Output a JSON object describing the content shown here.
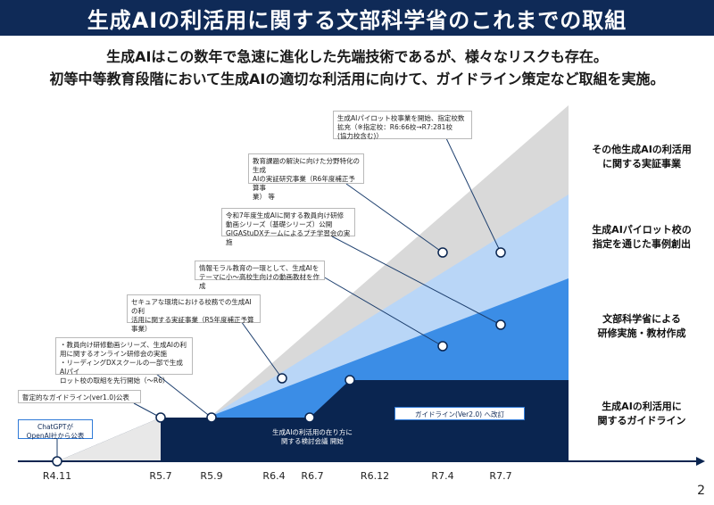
{
  "header": {
    "title": "生成AIの利活用に関する文部科学省のこれまでの取組"
  },
  "subtitle": {
    "line1": "生成AIはこの数年で急速に進化した先端技術であるが、様々なリスクも存在。",
    "line2": "初等中等教育段階において生成AIの適切な利活用に向けて、ガイドライン策定など取組を実施。"
  },
  "timeline": {
    "ticks": [
      "R4.11",
      "R5.7",
      "R5.9",
      "R6.4",
      "R6.7",
      "R6.12",
      "R7.4",
      "R7.7"
    ]
  },
  "categories": {
    "other": "その他生成AIの利活用\nに関する実証事業",
    "pilot": "生成AIパイロット校の\n指定を通じた事例創出",
    "training": "文部科学省による\n研修実施・教材作成",
    "guideline": "生成AIの利活用に\n関するガイドライン"
  },
  "callouts": {
    "chatgpt": "ChatGPTが\nOpenAI社から公表",
    "guideline_v1": "暫定的なガイドライン(ver1.0)公表",
    "training_videos": "・教員向け研修動画シリーズ、生成AIの利\n用に関するオンライン研修会の実施\n・リーディングDXスクールの一部で生成AIパイ\nロット校の取組を先行開始（～R6）",
    "secure_env": "セキュアな環境における校務での生成AIの利\n活用に関する実証事業（R5年度補正予算\n事業）",
    "info_moral": "情報モラル教育の一環として、生成AIを\nテーマに小～高校生向けの動画教材を作成",
    "basic_series": "令和7年度生成AIに関する教員向け研修\n動画シリーズ（基礎シリーズ）公開\nGIGAStuDXチームによるプチ学習会の実施",
    "field_specific": "教育課題の解決に向けた分野特化の生成\nAIの実証研究事業（R6年度補正予算事\n業） 等",
    "pilot_expand": "生成AIパイロット校事業を開始、指定校数\n拡充（※指定校：R6:66校→R7:281校\n(協力校含む)）",
    "guideline_v2": "ガイドライン(Ver2.0) へ改訂",
    "review_meeting": "生成AIの利活用の在り方に\n関する検討会議 開始"
  },
  "colors": {
    "navy": "#0a2550",
    "mid_blue": "#3b8de6",
    "light_blue": "#b9d6f7",
    "gray": "#d9d9d9",
    "callout_border": "#2f7ad8"
  },
  "page_number": "2"
}
